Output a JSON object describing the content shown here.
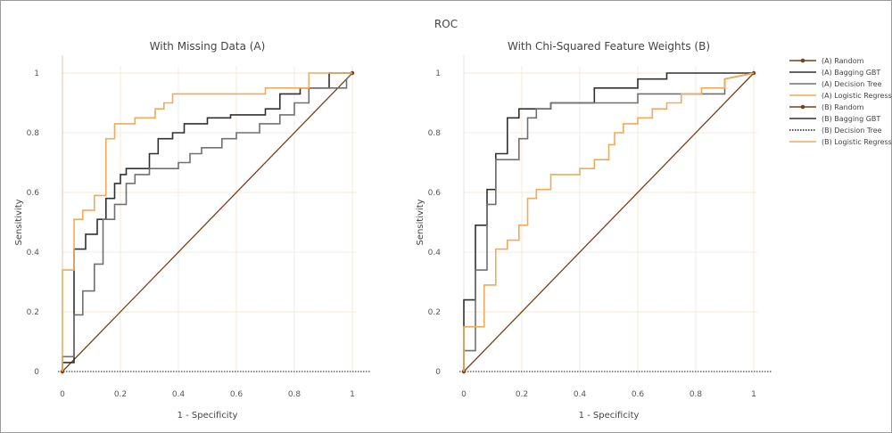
{
  "chart_data": {
    "type": "line",
    "title": "ROC",
    "colors": {
      "random": "#7a3e18",
      "bagging": "#303030",
      "tree": "#707070",
      "logistic": "#f0aa5a",
      "zero_line": "#1a1a1a",
      "grid": "#ececec",
      "grid_alt": "#f6e9d6"
    },
    "legend": {
      "placement": "right",
      "items": [
        {
          "label": "(A) Random",
          "color_key": "random",
          "marker": true
        },
        {
          "label": "(A) Bagging GBT",
          "color_key": "bagging",
          "marker": false
        },
        {
          "label": "(A) Decision Tree",
          "color_key": "tree",
          "marker": false
        },
        {
          "label": "(A) Logistic Regression",
          "color_key": "logistic",
          "marker": false
        },
        {
          "label": "(B) Random",
          "color_key": "random",
          "marker": true
        },
        {
          "label": "(B) Bagging GBT",
          "color_key": "bagging",
          "marker": false
        },
        {
          "label": "(B) Decision Tree",
          "color_key": "zero_line",
          "marker": false,
          "dotted": true
        },
        {
          "label": "(B) Logistic Regression",
          "color_key": "logistic",
          "marker": false
        }
      ]
    },
    "panels": [
      {
        "id": "A",
        "title": "With Missing Data (A)",
        "xlabel": "1 - Specificity",
        "ylabel": "Sensitivity",
        "xlim": [
          0,
          1
        ],
        "ylim": [
          0,
          1
        ],
        "ticks": [
          0,
          0.2,
          0.4,
          0.6,
          0.8,
          1
        ],
        "tick_labels": [
          "0",
          "0.2",
          "0.4",
          "0.6",
          "0.8",
          "1"
        ],
        "series": [
          {
            "name": "(A) Random",
            "color_key": "random",
            "x": [
              0,
              1
            ],
            "y": [
              0,
              1
            ]
          },
          {
            "name": "(A) Bagging GBT",
            "color_key": "bagging",
            "x": [
              0,
              0,
              0.04,
              0.04,
              0.08,
              0.08,
              0.12,
              0.12,
              0.15,
              0.15,
              0.18,
              0.18,
              0.2,
              0.2,
              0.22,
              0.22,
              0.3,
              0.3,
              0.33,
              0.33,
              0.38,
              0.38,
              0.42,
              0.42,
              0.5,
              0.5,
              0.58,
              0.58,
              0.7,
              0.7,
              0.75,
              0.75,
              0.82,
              0.82,
              0.92,
              0.92,
              1
            ],
            "y": [
              0,
              0.03,
              0.03,
              0.41,
              0.41,
              0.46,
              0.46,
              0.51,
              0.51,
              0.58,
              0.58,
              0.63,
              0.63,
              0.66,
              0.66,
              0.68,
              0.68,
              0.73,
              0.73,
              0.78,
              0.78,
              0.8,
              0.8,
              0.83,
              0.83,
              0.85,
              0.85,
              0.86,
              0.86,
              0.88,
              0.88,
              0.93,
              0.93,
              0.95,
              0.95,
              1,
              1
            ]
          },
          {
            "name": "(A) Decision Tree",
            "color_key": "tree",
            "x": [
              0,
              0,
              0.04,
              0.04,
              0.07,
              0.07,
              0.11,
              0.11,
              0.14,
              0.14,
              0.18,
              0.18,
              0.22,
              0.22,
              0.25,
              0.25,
              0.3,
              0.3,
              0.4,
              0.4,
              0.44,
              0.44,
              0.48,
              0.48,
              0.55,
              0.55,
              0.6,
              0.6,
              0.68,
              0.68,
              0.75,
              0.75,
              0.8,
              0.8,
              0.85,
              0.85,
              0.98,
              0.98,
              1
            ],
            "y": [
              0,
              0.05,
              0.05,
              0.19,
              0.19,
              0.27,
              0.27,
              0.36,
              0.36,
              0.51,
              0.51,
              0.56,
              0.56,
              0.63,
              0.63,
              0.66,
              0.66,
              0.68,
              0.68,
              0.7,
              0.7,
              0.73,
              0.73,
              0.75,
              0.75,
              0.78,
              0.78,
              0.8,
              0.8,
              0.83,
              0.83,
              0.86,
              0.86,
              0.9,
              0.9,
              0.95,
              0.95,
              0.98,
              1
            ]
          },
          {
            "name": "(A) Logistic Regression",
            "color_key": "logistic",
            "x": [
              0,
              0,
              0.04,
              0.04,
              0.07,
              0.07,
              0.11,
              0.11,
              0.15,
              0.15,
              0.18,
              0.18,
              0.25,
              0.25,
              0.32,
              0.32,
              0.35,
              0.35,
              0.38,
              0.38,
              0.7,
              0.7,
              0.85,
              0.85,
              1
            ],
            "y": [
              0,
              0.34,
              0.34,
              0.51,
              0.51,
              0.54,
              0.54,
              0.59,
              0.59,
              0.78,
              0.78,
              0.83,
              0.83,
              0.85,
              0.85,
              0.88,
              0.88,
              0.9,
              0.9,
              0.93,
              0.93,
              0.95,
              0.95,
              1,
              1
            ]
          }
        ]
      },
      {
        "id": "B",
        "title": "With Chi-Squared Feature Weights (B)",
        "xlabel": "1 - Specificity",
        "ylabel": "Sensitivity",
        "xlim": [
          0,
          1
        ],
        "ylim": [
          0,
          1
        ],
        "ticks": [
          0,
          0.2,
          0.4,
          0.6,
          0.8,
          1
        ],
        "tick_labels": [
          "0",
          "0.2",
          "0.4",
          "0.6",
          "0.8",
          "1"
        ],
        "series": [
          {
            "name": "(B) Random",
            "color_key": "random",
            "x": [
              0,
              1
            ],
            "y": [
              0,
              1
            ]
          },
          {
            "name": "(B) Bagging GBT",
            "color_key": "bagging",
            "x": [
              0,
              0,
              0.04,
              0.04,
              0.08,
              0.08,
              0.11,
              0.11,
              0.15,
              0.15,
              0.19,
              0.19,
              0.3,
              0.3,
              0.45,
              0.45,
              0.6,
              0.6,
              0.7,
              0.7,
              1
            ],
            "y": [
              0,
              0.24,
              0.24,
              0.49,
              0.49,
              0.61,
              0.61,
              0.73,
              0.73,
              0.85,
              0.85,
              0.88,
              0.88,
              0.9,
              0.9,
              0.95,
              0.95,
              0.98,
              0.98,
              1,
              1
            ]
          },
          {
            "name": "(B) Decision Tree",
            "color_key": "tree",
            "x": [
              0,
              0,
              0.04,
              0.04,
              0.08,
              0.08,
              0.11,
              0.11,
              0.19,
              0.19,
              0.22,
              0.22,
              0.25,
              0.25,
              0.3,
              0.3,
              0.6,
              0.6,
              0.9,
              0.9,
              1
            ],
            "y": [
              0,
              0.07,
              0.07,
              0.34,
              0.34,
              0.56,
              0.56,
              0.71,
              0.71,
              0.78,
              0.78,
              0.85,
              0.85,
              0.88,
              0.88,
              0.9,
              0.9,
              0.93,
              0.93,
              0.98,
              1
            ]
          },
          {
            "name": "(B) Logistic Regression",
            "color_key": "logistic",
            "x": [
              0,
              0,
              0.07,
              0.07,
              0.11,
              0.11,
              0.15,
              0.15,
              0.19,
              0.19,
              0.22,
              0.22,
              0.25,
              0.25,
              0.3,
              0.3,
              0.4,
              0.4,
              0.45,
              0.45,
              0.5,
              0.5,
              0.52,
              0.52,
              0.55,
              0.55,
              0.6,
              0.6,
              0.65,
              0.65,
              0.7,
              0.7,
              0.75,
              0.75,
              0.82,
              0.82,
              0.9,
              0.9,
              1
            ],
            "y": [
              0,
              0.15,
              0.15,
              0.29,
              0.29,
              0.41,
              0.41,
              0.44,
              0.44,
              0.49,
              0.49,
              0.58,
              0.58,
              0.61,
              0.61,
              0.66,
              0.66,
              0.68,
              0.68,
              0.71,
              0.71,
              0.76,
              0.76,
              0.8,
              0.8,
              0.83,
              0.83,
              0.85,
              0.85,
              0.88,
              0.88,
              0.9,
              0.9,
              0.93,
              0.93,
              0.95,
              0.95,
              0.98,
              1
            ]
          }
        ]
      }
    ]
  }
}
